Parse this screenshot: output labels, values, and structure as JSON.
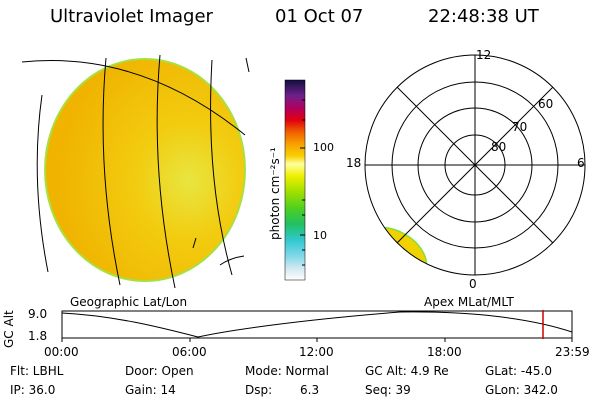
{
  "header": {
    "title": "Ultraviolet Imager",
    "date": "01 Oct 07",
    "time": "22:48:38 UT"
  },
  "colorbar": {
    "unit_label": "photon cm⁻²s⁻¹",
    "tick_labels": [
      "100",
      "10"
    ]
  },
  "polar_plot": {
    "mlt_labels": {
      "top": "12",
      "left": "18",
      "right": "6",
      "bottom": "0"
    },
    "lat_labels": [
      "60",
      "70",
      "80"
    ]
  },
  "panel_labels": {
    "left": "Geographic Lat/Lon",
    "right": "Apex MLat/MLT"
  },
  "orbit": {
    "ylabel": "GC Alt",
    "y_ticks": [
      "9.0",
      "1.8"
    ],
    "x_ticks": [
      "00:00",
      "06:00",
      "12:00",
      "18:00",
      "23:59"
    ],
    "marker_color": "#cc0000"
  },
  "status": {
    "filter": "Flt: LBHL",
    "ip": "IP: 36.0",
    "door": "Door: Open",
    "gain": "Gain: 14",
    "mode": "Mode: Normal",
    "dsp_label": "Dsp:",
    "dsp_value": "6.3",
    "gc_alt": "GC Alt: 4.9 Re",
    "seq": "Seq: 39",
    "glat": "GLat: -45.0",
    "glon": "GLon: 342.0"
  },
  "colors": {
    "disk_fill": "#f2c000",
    "disk_edge": "#b8e000",
    "aurora_fill": "#f0d800"
  }
}
